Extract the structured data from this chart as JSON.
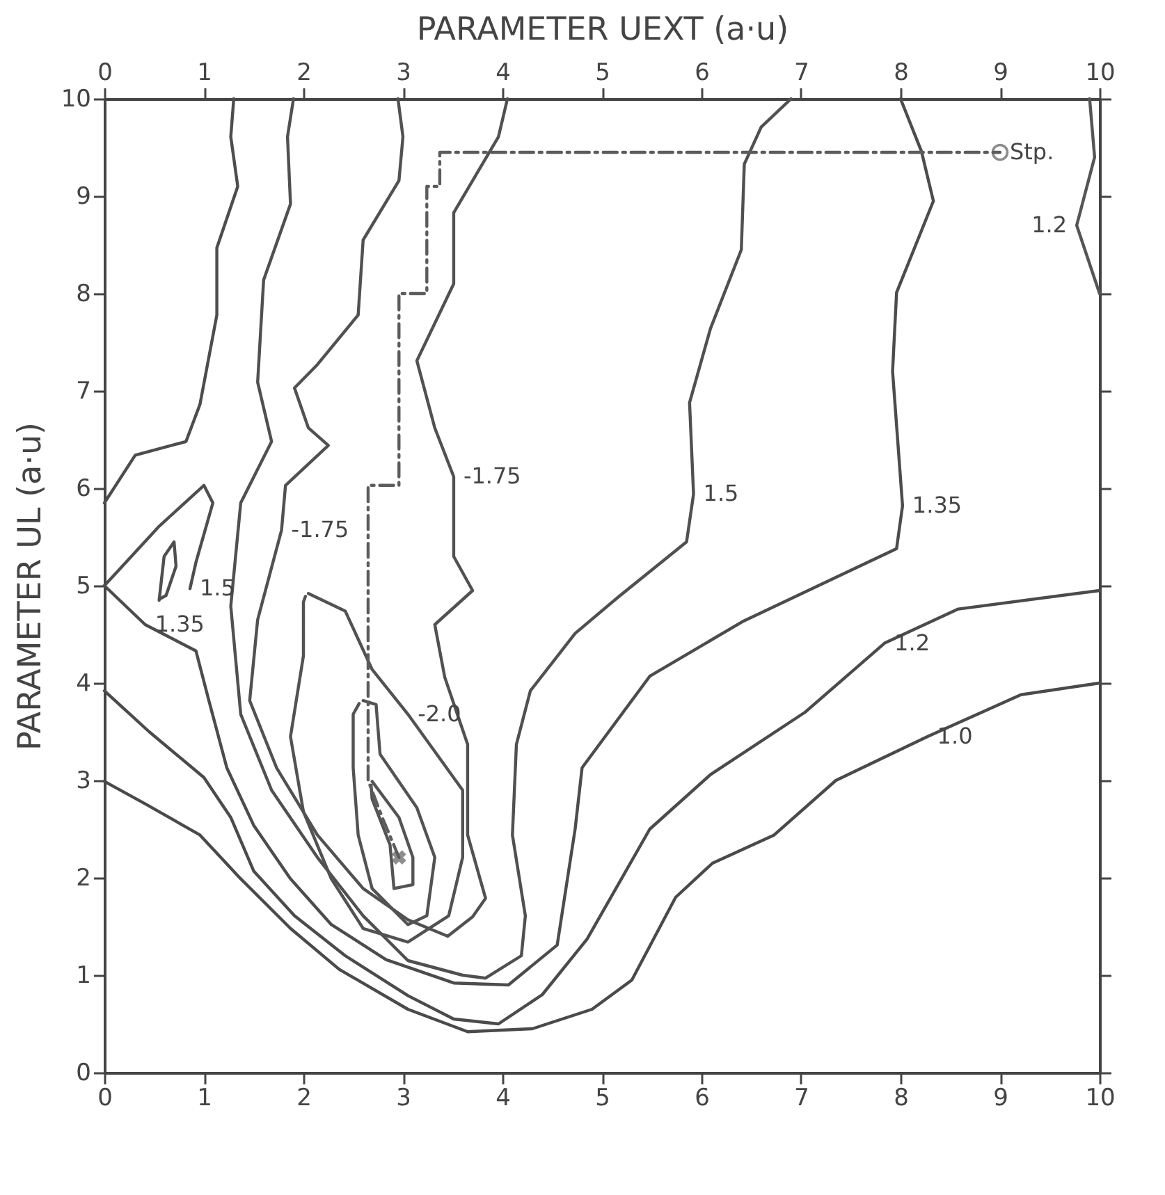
{
  "chart_data": {
    "type": "line",
    "x2label": "PARAMETER UEXT (a·u)",
    "ylabel": "PARAMETER UL (a·u)",
    "xlim": [
      0,
      10
    ],
    "xticks": [
      0,
      1,
      2,
      3,
      4,
      5,
      6,
      7,
      8,
      9,
      10
    ],
    "x2lim": [
      0,
      10
    ],
    "x2ticks": [
      0,
      1,
      2,
      3,
      4,
      5,
      6,
      7,
      8,
      9,
      10
    ],
    "ylim": [
      0,
      10
    ],
    "yticks": [
      0,
      1,
      2,
      3,
      4,
      5,
      6,
      7,
      8,
      9,
      10
    ],
    "grid": false,
    "series": [
      {
        "color": "#4a4a4a",
        "line_style": "solid",
        "x": [
          0,
          0.41,
          0.96,
          1.37,
          1.87,
          2.36,
          3.05,
          3.65,
          4.3,
          4.9,
          5.3,
          5.74,
          6.11,
          6.73,
          7.35,
          8.27,
          9.21,
          10
        ],
        "values": [
          2.99,
          2.76,
          2.44,
          1.99,
          1.48,
          1.06,
          0.65,
          0.42,
          0.45,
          0.65,
          0.95,
          1.8,
          2.15,
          2.44,
          3.0,
          3.45,
          3.88,
          4.0
        ]
      },
      {
        "color": "#4b4b4b",
        "line_style": "solid",
        "x": [
          0,
          0.45,
          1.0,
          1.27,
          1.5,
          1.91,
          2.42,
          3.05,
          3.51,
          3.96,
          4.4,
          4.85,
          5.48,
          6.09,
          7.04,
          7.84,
          8.58,
          10
        ],
        "values": [
          3.92,
          3.5,
          3.03,
          2.62,
          2.07,
          1.61,
          1.2,
          0.79,
          0.55,
          0.5,
          0.8,
          1.37,
          2.5,
          3.06,
          3.7,
          4.41,
          4.76,
          4.95
        ]
      },
      {
        "color": "#4c4c4c",
        "line_style": "solid",
        "x": [
          0,
          0.41,
          0.92,
          1.05,
          1.23,
          1.5,
          1.87,
          2.28,
          2.83,
          3.51,
          4.06,
          4.55,
          4.73,
          4.8,
          5.48,
          6.41,
          7.34,
          7.96,
          8.02,
          7.92,
          7.96,
          8.33,
          8.21,
          8.0
        ],
        "values": [
          5.0,
          4.6,
          4.33,
          3.82,
          3.13,
          2.54,
          1.99,
          1.52,
          1.16,
          0.92,
          0.9,
          1.31,
          2.5,
          3.13,
          4.07,
          4.63,
          5.08,
          5.38,
          5.82,
          7.2,
          8.01,
          8.95,
          9.46,
          10
        ]
      },
      {
        "color": "#4d4d4d",
        "line_style": "solid",
        "x": [
          0,
          0.31,
          0.82,
          0.96,
          1.13,
          1.13,
          1.34,
          1.27,
          1.3
        ],
        "values": [
          5.85,
          6.34,
          6.48,
          6.86,
          7.78,
          8.47,
          9.1,
          9.61,
          10
        ]
      },
      {
        "color": "#4e4e4e",
        "line_style": "solid",
        "x": [
          0,
          0.55,
          1.0,
          1.09,
          0.92,
          0.86
        ],
        "values": [
          5.0,
          5.61,
          6.03,
          5.85,
          5.24,
          4.97
        ]
      },
      {
        "color": "#4f4f4f",
        "line_style": "solid",
        "x": [
          0.55,
          0.6,
          0.7,
          0.72,
          0.62,
          0.57
        ],
        "values": [
          4.85,
          5.3,
          5.45,
          5.2,
          4.9,
          4.87
        ]
      },
      {
        "color": "#505050",
        "line_style": "solid",
        "x": [
          1.9,
          1.84,
          1.87,
          1.6,
          1.54,
          1.68,
          1.37,
          1.27,
          1.37,
          1.68,
          2.14,
          2.6,
          3.05,
          3.6,
          3.83,
          4.19,
          4.23,
          4.1,
          4.14,
          4.28,
          4.73,
          5.16,
          5.85,
          5.92,
          5.88,
          6.09,
          6.4,
          6.43,
          6.6,
          6.9
        ],
        "values": [
          10,
          9.61,
          8.92,
          8.14,
          7.09,
          6.48,
          5.85,
          4.79,
          3.68,
          2.9,
          2.21,
          1.61,
          1.15,
          1.0,
          0.97,
          1.2,
          1.61,
          2.44,
          3.37,
          3.92,
          4.51,
          4.88,
          5.45,
          5.94,
          6.88,
          7.64,
          8.45,
          9.33,
          9.71,
          10
        ]
      },
      {
        "color": "#515151",
        "line_style": "solid",
        "x": [
          2.95,
          3.0,
          2.96,
          2.6,
          2.55,
          2.14,
          1.91,
          2.05,
          2.25,
          1.82,
          1.78,
          1.54,
          1.46,
          1.73,
          2.14,
          2.6,
          3.05,
          3.45,
          3.7,
          3.83,
          3.65,
          3.65,
          3.42,
          3.32,
          3.7,
          3.51,
          3.51,
          3.32,
          3.14,
          3.51,
          3.51,
          3.96,
          4.05
        ],
        "values": [
          10,
          9.61,
          9.16,
          8.55,
          7.78,
          7.27,
          7.03,
          6.62,
          6.44,
          6.03,
          5.57,
          4.65,
          3.82,
          3.13,
          2.44,
          1.89,
          1.57,
          1.4,
          1.6,
          1.79,
          2.44,
          3.37,
          4.06,
          4.6,
          4.95,
          5.3,
          6.12,
          6.62,
          7.31,
          8.1,
          8.83,
          9.61,
          10
        ]
      },
      {
        "color": "#525252",
        "line_style": "solid",
        "x": [
          2.05,
          2.42,
          2.69,
          3.05,
          3.6,
          3.6,
          3.46,
          3.05,
          2.6,
          2.28,
          2.0,
          1.87,
          2.0,
          2.0,
          2.02
        ],
        "values": [
          4.92,
          4.74,
          4.14,
          3.68,
          2.9,
          2.21,
          1.61,
          1.34,
          1.48,
          1.99,
          2.68,
          3.45,
          4.28,
          4.83,
          4.89
        ]
      },
      {
        "color": "#535353",
        "line_style": "solid",
        "x": [
          2.6,
          2.73,
          2.77,
          3.14,
          3.32,
          3.24,
          3.05,
          2.69,
          2.55,
          2.5,
          2.5,
          2.56
        ],
        "values": [
          3.82,
          3.78,
          3.27,
          2.72,
          2.21,
          1.61,
          1.52,
          1.89,
          2.44,
          3.13,
          3.68,
          3.79
        ]
      },
      {
        "color": "#545454",
        "line_style": "solid",
        "x": [
          2.69,
          2.96,
          3.1,
          3.1,
          2.91,
          2.87,
          2.69,
          2.68
        ],
        "values": [
          2.99,
          2.62,
          2.21,
          1.93,
          1.89,
          2.34,
          2.81,
          2.95
        ]
      },
      {
        "color": "#555555",
        "line_style": "solid",
        "x": [
          9.9,
          9.95,
          9.77,
          10
        ],
        "values": [
          10,
          9.4,
          8.7,
          8.0
        ]
      },
      {
        "color": "#5c5c5c",
        "line_style": "dashed",
        "x": [
          2.96,
          2.8,
          2.65,
          2.65,
          2.96,
          2.96,
          3.24,
          3.24,
          3.37,
          3.37,
          9.0
        ],
        "values": [
          2.21,
          2.6,
          3.0,
          6.03,
          6.03,
          8.0,
          8.0,
          9.1,
          9.1,
          9.45,
          9.45
        ]
      },
      {
        "type": "scatter",
        "color": "#5c5c5c",
        "marker": "circle",
        "x": [
          9.0
        ],
        "values": [
          9.45
        ]
      },
      {
        "type": "scatter",
        "color": "#5c5c5c",
        "marker": "cross",
        "x": [
          2.96
        ],
        "values": [
          2.21
        ]
      }
    ],
    "annotations": [
      {
        "text": "Stp.",
        "x": 9.0,
        "y": 9.45
      },
      {
        "text": "1.0",
        "x": 8.27,
        "y": 3.45
      },
      {
        "text": "1.2",
        "x": 7.84,
        "y": 4.41
      },
      {
        "text": "1.35",
        "x": 8.02,
        "y": 5.82
      },
      {
        "text": "1.5",
        "x": 5.92,
        "y": 5.94
      },
      {
        "text": "-1.75",
        "x": 1.78,
        "y": 5.57
      },
      {
        "text": "-1.75",
        "x": 3.51,
        "y": 6.12
      },
      {
        "text": "-2.0",
        "x": 3.05,
        "y": 3.68
      },
      {
        "text": "1.5",
        "x": 0.86,
        "y": 4.97
      },
      {
        "text": "1.35",
        "x": 0.41,
        "y": 4.6
      },
      {
        "text": "1.2",
        "x": 9.77,
        "y": 8.7
      }
    ]
  }
}
